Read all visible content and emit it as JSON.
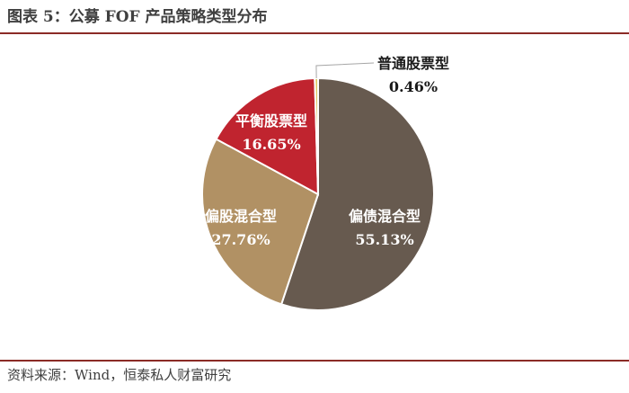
{
  "header": {
    "title": "图表 5：公募 FOF 产品策略类型分布"
  },
  "footer": {
    "source": "资料来源：Wind，恒泰私人财富研究"
  },
  "chart_data": {
    "type": "pie",
    "title": "",
    "legend": "none",
    "slices": [
      {
        "name": "偏债混合型",
        "value": 55.13,
        "value_label": "55.13%",
        "color": "#675a4f",
        "label_color": "#ffffff"
      },
      {
        "name": "偏股混合型",
        "value": 27.76,
        "value_label": "27.76%",
        "color": "#b19164",
        "label_color": "#ffffff"
      },
      {
        "name": "平衡股票型",
        "value": 16.65,
        "value_label": "16.65%",
        "color": "#c0242f",
        "label_color": "#ffffff"
      },
      {
        "name": "普通股票型",
        "value": 0.46,
        "value_label": "0.46%",
        "color": "#e0c860",
        "label_color": "#1a1a1a"
      }
    ]
  }
}
